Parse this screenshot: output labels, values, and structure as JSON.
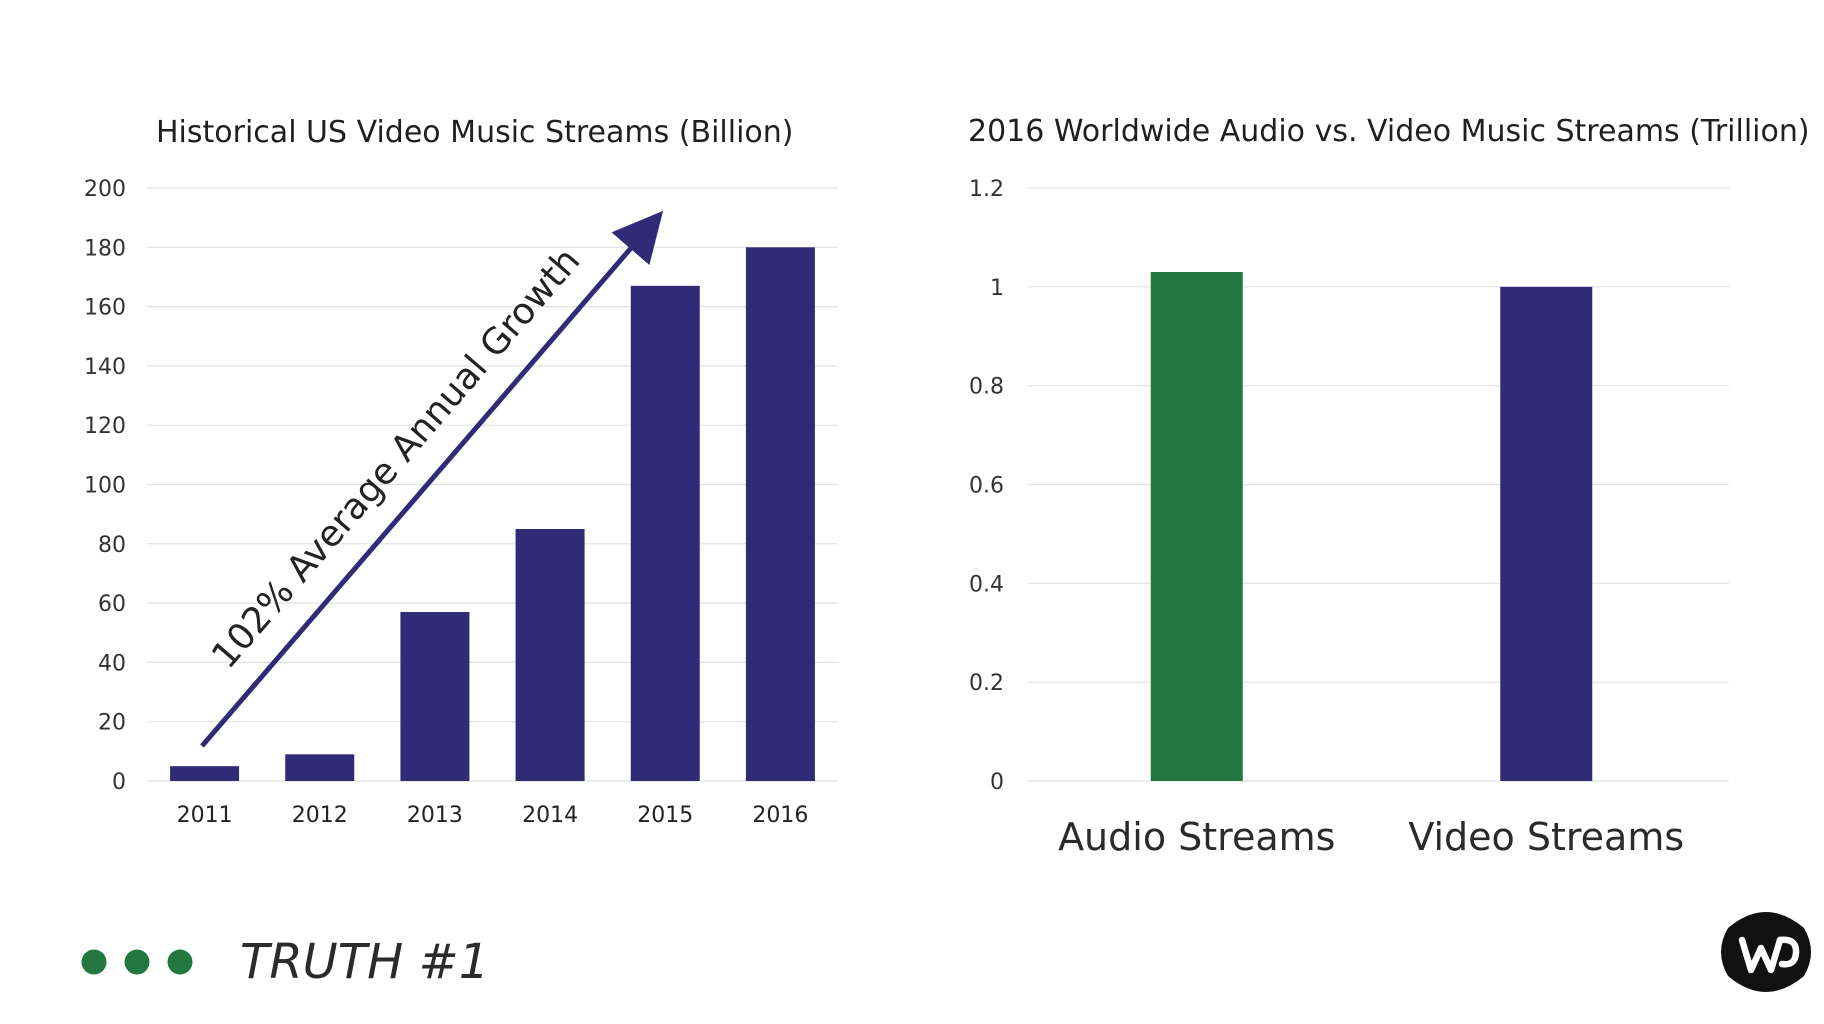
{
  "colors": {
    "bar_purple": "#312a77",
    "bar_green": "#237842",
    "dot_green": "#237842",
    "logo_black": "#111111"
  },
  "chart_data": [
    {
      "type": "bar",
      "title": "Historical US Video Music Streams (Billion)",
      "categories": [
        "2011",
        "2012",
        "2013",
        "2014",
        "2015",
        "2016"
      ],
      "values": [
        5,
        9,
        57,
        85,
        167,
        180
      ],
      "ylim": [
        0,
        200
      ],
      "yticks": [
        "0",
        "20",
        "40",
        "60",
        "80",
        "100",
        "120",
        "140",
        "160",
        "180",
        "200"
      ],
      "grid": true,
      "annotation": "102% Average Annual Growth"
    },
    {
      "type": "bar",
      "title": "2016 Worldwide Audio vs. Video Music Streams (Trillion)",
      "categories": [
        "Audio Streams",
        "Video Streams"
      ],
      "values": [
        1.03,
        1.0
      ],
      "bar_colors": [
        "#237842",
        "#312a77"
      ],
      "ylim": [
        0,
        1.2
      ],
      "yticks": [
        "0",
        "0.2",
        "0.4",
        "0.6",
        "0.8",
        "1",
        "1.2"
      ],
      "grid": true
    }
  ],
  "footer": {
    "dots": 3,
    "label": "TRUTH #1"
  },
  "logo": {
    "icon": "warner-music-logo-icon"
  }
}
